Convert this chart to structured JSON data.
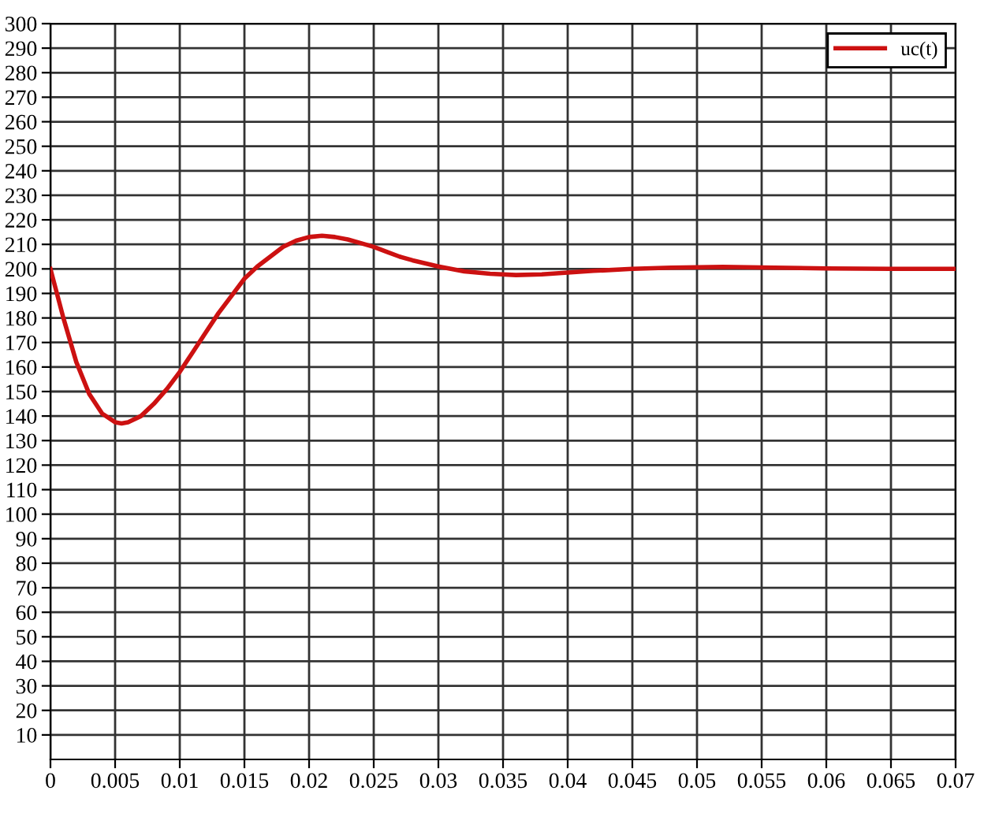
{
  "chart_data": {
    "type": "line",
    "legend": "top right",
    "grid": true,
    "line_style": "solid",
    "xlim": [
      0,
      0.07
    ],
    "xticks": [
      0,
      0.005,
      0.01,
      0.015,
      0.02,
      0.025,
      0.03,
      0.035,
      0.04,
      0.045,
      0.05,
      0.055,
      0.06,
      0.065,
      0.07
    ],
    "ylim": [
      0,
      300
    ],
    "yticks": [
      10,
      20,
      30,
      40,
      50,
      60,
      70,
      80,
      90,
      100,
      110,
      120,
      130,
      140,
      150,
      160,
      170,
      180,
      190,
      200,
      210,
      220,
      230,
      240,
      250,
      260,
      270,
      280,
      290,
      300
    ],
    "x": [
      0,
      0.001,
      0.002,
      0.003,
      0.004,
      0.005,
      0.0055,
      0.006,
      0.007,
      0.008,
      0.009,
      0.01,
      0.011,
      0.012,
      0.013,
      0.014,
      0.015,
      0.016,
      0.017,
      0.018,
      0.019,
      0.02,
      0.021,
      0.022,
      0.023,
      0.024,
      0.025,
      0.026,
      0.027,
      0.028,
      0.03,
      0.032,
      0.034,
      0.036,
      0.038,
      0.04,
      0.042,
      0.045,
      0.048,
      0.052,
      0.056,
      0.06,
      0.065,
      0.07
    ],
    "series": [
      {
        "name": "uc(t)",
        "color": "#cc1111",
        "values": [
          200,
          180,
          162,
          149,
          141,
          137.5,
          137,
          137.5,
          140,
          145,
          151,
          158,
          166,
          174,
          182,
          189,
          196,
          201,
          205,
          209,
          211.5,
          213,
          213.5,
          213,
          212,
          210.5,
          209,
          207,
          205,
          203.5,
          201,
          199,
          198,
          197.5,
          197.8,
          198.5,
          199.2,
          200,
          200.5,
          200.8,
          200.5,
          200.2,
          200,
          200
        ]
      }
    ]
  }
}
